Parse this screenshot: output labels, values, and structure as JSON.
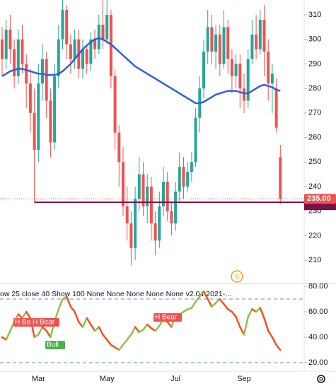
{
  "chart_data": [
    {
      "type": "candlestick",
      "categories": [
        null,
        null,
        null,
        null,
        null,
        null,
        null,
        null,
        null,
        "Mar",
        null,
        null,
        null,
        null,
        null,
        null,
        null,
        null,
        null,
        null,
        null,
        null,
        null,
        null,
        null,
        null,
        "May",
        null,
        null,
        null,
        null,
        null,
        null,
        null,
        null,
        null,
        null,
        null,
        null,
        null,
        null,
        null,
        null,
        "Jul",
        null,
        null,
        null,
        null,
        null,
        null,
        null,
        null,
        null,
        null,
        null,
        null,
        null,
        null,
        null,
        null,
        "Sep",
        null,
        null,
        null,
        null,
        null,
        null,
        null,
        null,
        null
      ],
      "series": [
        {
          "up_color": "#26a69a",
          "down_color": "#ef5350",
          "open": [
            300,
            292,
            304,
            296,
            285,
            300,
            290,
            282,
            270,
            255,
            282,
            292,
            275,
            258,
            285,
            300,
            312,
            298,
            292,
            300,
            288,
            296,
            290,
            300,
            296,
            306,
            300,
            310,
            285,
            262,
            250,
            232,
            225,
            215,
            235,
            245,
            232,
            240,
            225,
            218,
            232,
            242,
            230,
            225,
            238,
            248,
            240,
            246,
            250,
            268,
            280,
            295,
            305,
            295,
            302,
            290,
            305,
            292,
            285,
            290,
            280,
            275,
            292,
            302,
            296,
            308,
            295,
            282,
            280,
            252
          ],
          "high": [
            305,
            308,
            310,
            300,
            304,
            306,
            294,
            288,
            280,
            290,
            298,
            295,
            280,
            290,
            306,
            316,
            314,
            302,
            304,
            304,
            300,
            298,
            303,
            304,
            310,
            316,
            316,
            312,
            288,
            265,
            256,
            240,
            230,
            240,
            252,
            250,
            245,
            244,
            230,
            238,
            248,
            246,
            234,
            242,
            254,
            252,
            250,
            254,
            272,
            285,
            300,
            312,
            310,
            306,
            306,
            312,
            308,
            296,
            294,
            294,
            286,
            296,
            308,
            310,
            312,
            314,
            300,
            290,
            284,
            257
          ],
          "low": [
            285,
            288,
            290,
            280,
            282,
            286,
            272,
            262,
            233.6,
            250,
            275,
            268,
            252,
            255,
            280,
            296,
            292,
            286,
            288,
            284,
            284,
            286,
            287,
            292,
            294,
            296,
            298,
            280,
            255,
            240,
            228,
            218,
            208,
            210,
            230,
            228,
            225,
            218,
            212,
            215,
            228,
            226,
            220,
            222,
            234,
            235,
            238,
            242,
            248,
            262,
            276,
            290,
            290,
            288,
            285,
            288,
            286,
            278,
            280,
            272,
            270,
            272,
            290,
            292,
            294,
            285,
            275,
            270,
            262,
            233
          ],
          "close": [
            292,
            304,
            296,
            285,
            300,
            290,
            282,
            270,
            255,
            282,
            292,
            275,
            258,
            285,
            300,
            312,
            298,
            292,
            300,
            288,
            296,
            290,
            300,
            296,
            306,
            300,
            310,
            285,
            262,
            250,
            232,
            225,
            215,
            235,
            245,
            232,
            240,
            225,
            218,
            232,
            242,
            230,
            225,
            238,
            248,
            240,
            246,
            250,
            268,
            280,
            295,
            305,
            295,
            302,
            290,
            305,
            292,
            285,
            290,
            280,
            275,
            292,
            302,
            296,
            308,
            295,
            282,
            286,
            264,
            235
          ]
        },
        {
          "type": "line",
          "color": "#2f5fe0",
          "values": [
            285,
            286,
            287,
            287.5,
            288,
            288,
            287.5,
            287,
            286.5,
            286,
            286,
            285.5,
            285.5,
            285.5,
            286,
            287,
            288.5,
            290,
            292,
            294,
            296,
            297.5,
            299,
            300,
            300.5,
            300,
            299,
            298,
            296.5,
            295,
            293.5,
            292,
            290.5,
            289,
            288,
            287,
            286,
            285,
            284,
            283,
            282,
            281,
            280,
            279,
            278,
            277,
            276,
            275,
            274,
            274,
            274.5,
            275.5,
            276.5,
            277.5,
            278,
            278.5,
            279,
            279,
            279,
            278.5,
            278,
            278,
            279,
            280,
            281,
            281.5,
            281,
            280.5,
            279.5,
            279
          ]
        }
      ],
      "ylim": [
        200.8,
        316.05
      ],
      "yticks": [
        210,
        220,
        230,
        240,
        250,
        260,
        270,
        280,
        290,
        300,
        310
      ],
      "last_price": {
        "value": 235,
        "label": "235.00",
        "color": "#ef5350"
      },
      "hline": {
        "value": 233.6,
        "color": "#7b1049"
      },
      "grid": false
    },
    {
      "type": "line",
      "subtitle": "ow 25 close 40 Show 100 None None None None None v2.04 2021-...",
      "series": [
        {
          "up_color": "#8bc34a",
          "down_color": "#f4511e",
          "values": [
            40,
            38,
            45,
            52,
            58,
            55,
            60,
            55,
            40,
            42,
            48,
            45,
            40,
            52,
            62,
            70,
            72,
            64,
            60,
            52,
            48,
            55,
            50,
            45,
            48,
            42,
            38,
            34,
            32,
            30,
            34,
            38,
            42,
            48,
            44,
            46,
            50,
            47,
            45,
            49,
            54,
            52,
            48,
            56,
            58,
            60,
            62,
            63,
            68,
            72,
            76,
            70,
            64,
            67,
            70,
            66,
            62,
            60,
            56,
            48,
            42,
            56,
            62,
            60,
            63,
            55,
            45,
            40,
            34,
            30
          ]
        }
      ],
      "ylim": [
        13.3,
        81.7
      ],
      "yticks": [
        {
          "value": 20,
          "label": "20.00"
        },
        {
          "value": 40,
          "label": "40.00"
        },
        {
          "value": 60,
          "label": "60.00"
        },
        {
          "value": 80,
          "label": "80.00"
        }
      ],
      "bands": [
        70,
        20
      ],
      "annotations": [
        {
          "text": "H Bear",
          "color": "#ef5350"
        },
        {
          "text": "H Bear",
          "color": "#ef5350"
        },
        {
          "text": "Bull",
          "color": "#4caf50"
        },
        {
          "text": "H Bear",
          "color": "#ef5350"
        }
      ],
      "marker": "S"
    }
  ]
}
